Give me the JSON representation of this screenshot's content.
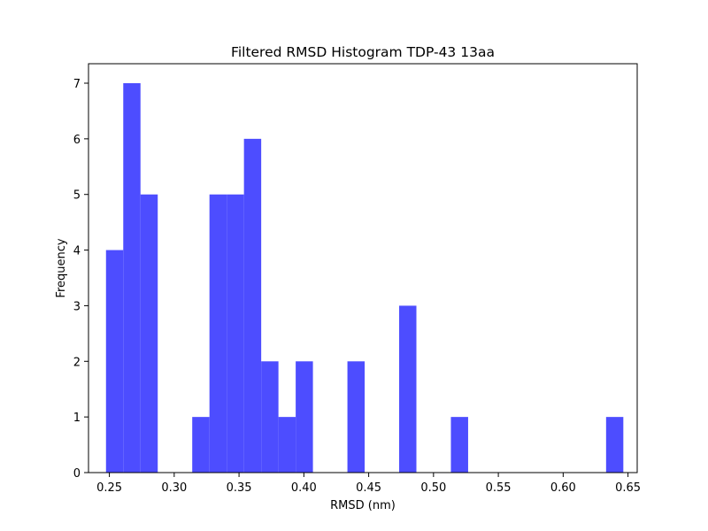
{
  "chart_data": {
    "type": "bar",
    "title": "Filtered RMSD Histogram TDP-43 13aa",
    "xlabel": "RMSD (nm)",
    "ylabel": "Frequency",
    "xlim": [
      0.2339,
      0.6571
    ],
    "ylim": [
      0,
      7.35
    ],
    "xticks": [
      "0.25",
      "0.30",
      "0.35",
      "0.40",
      "0.45",
      "0.50",
      "0.55",
      "0.60",
      "0.65"
    ],
    "xtick_values": [
      0.25,
      0.3,
      0.35,
      0.4,
      0.45,
      0.5,
      0.55,
      0.6,
      0.65
    ],
    "yticks": [
      "0",
      "1",
      "2",
      "3",
      "4",
      "5",
      "6",
      "7"
    ],
    "ytick_values": [
      0,
      1,
      2,
      3,
      4,
      5,
      6,
      7
    ],
    "bins": [
      {
        "start": 0.2474,
        "end": 0.2607,
        "value": 4
      },
      {
        "start": 0.2607,
        "end": 0.274,
        "value": 7
      },
      {
        "start": 0.274,
        "end": 0.2873,
        "value": 5
      },
      {
        "start": 0.2873,
        "end": 0.3006,
        "value": 0
      },
      {
        "start": 0.3006,
        "end": 0.3139,
        "value": 0
      },
      {
        "start": 0.3139,
        "end": 0.3272,
        "value": 1
      },
      {
        "start": 0.3272,
        "end": 0.3405,
        "value": 5
      },
      {
        "start": 0.3405,
        "end": 0.3538,
        "value": 5
      },
      {
        "start": 0.3538,
        "end": 0.3671,
        "value": 6
      },
      {
        "start": 0.3671,
        "end": 0.3804,
        "value": 2
      },
      {
        "start": 0.3804,
        "end": 0.3937,
        "value": 1
      },
      {
        "start": 0.3937,
        "end": 0.407,
        "value": 2
      },
      {
        "start": 0.407,
        "end": 0.4203,
        "value": 0
      },
      {
        "start": 0.4203,
        "end": 0.4336,
        "value": 0
      },
      {
        "start": 0.4336,
        "end": 0.4469,
        "value": 2
      },
      {
        "start": 0.4469,
        "end": 0.4602,
        "value": 0
      },
      {
        "start": 0.4602,
        "end": 0.4735,
        "value": 0
      },
      {
        "start": 0.4735,
        "end": 0.4868,
        "value": 3
      },
      {
        "start": 0.4868,
        "end": 0.5001,
        "value": 0
      },
      {
        "start": 0.5001,
        "end": 0.5134,
        "value": 0
      },
      {
        "start": 0.5134,
        "end": 0.5267,
        "value": 1
      },
      {
        "start": 0.5267,
        "end": 0.54,
        "value": 0
      },
      {
        "start": 0.54,
        "end": 0.5533,
        "value": 0
      },
      {
        "start": 0.5533,
        "end": 0.5666,
        "value": 0
      },
      {
        "start": 0.5666,
        "end": 0.5799,
        "value": 0
      },
      {
        "start": 0.5799,
        "end": 0.5932,
        "value": 0
      },
      {
        "start": 0.5932,
        "end": 0.6065,
        "value": 0
      },
      {
        "start": 0.6065,
        "end": 0.6198,
        "value": 0
      },
      {
        "start": 0.6198,
        "end": 0.6331,
        "value": 0
      },
      {
        "start": 0.6331,
        "end": 0.6464,
        "value": 1
      }
    ],
    "bar_color": "#4d4dff",
    "grid": false,
    "legend": "none"
  }
}
